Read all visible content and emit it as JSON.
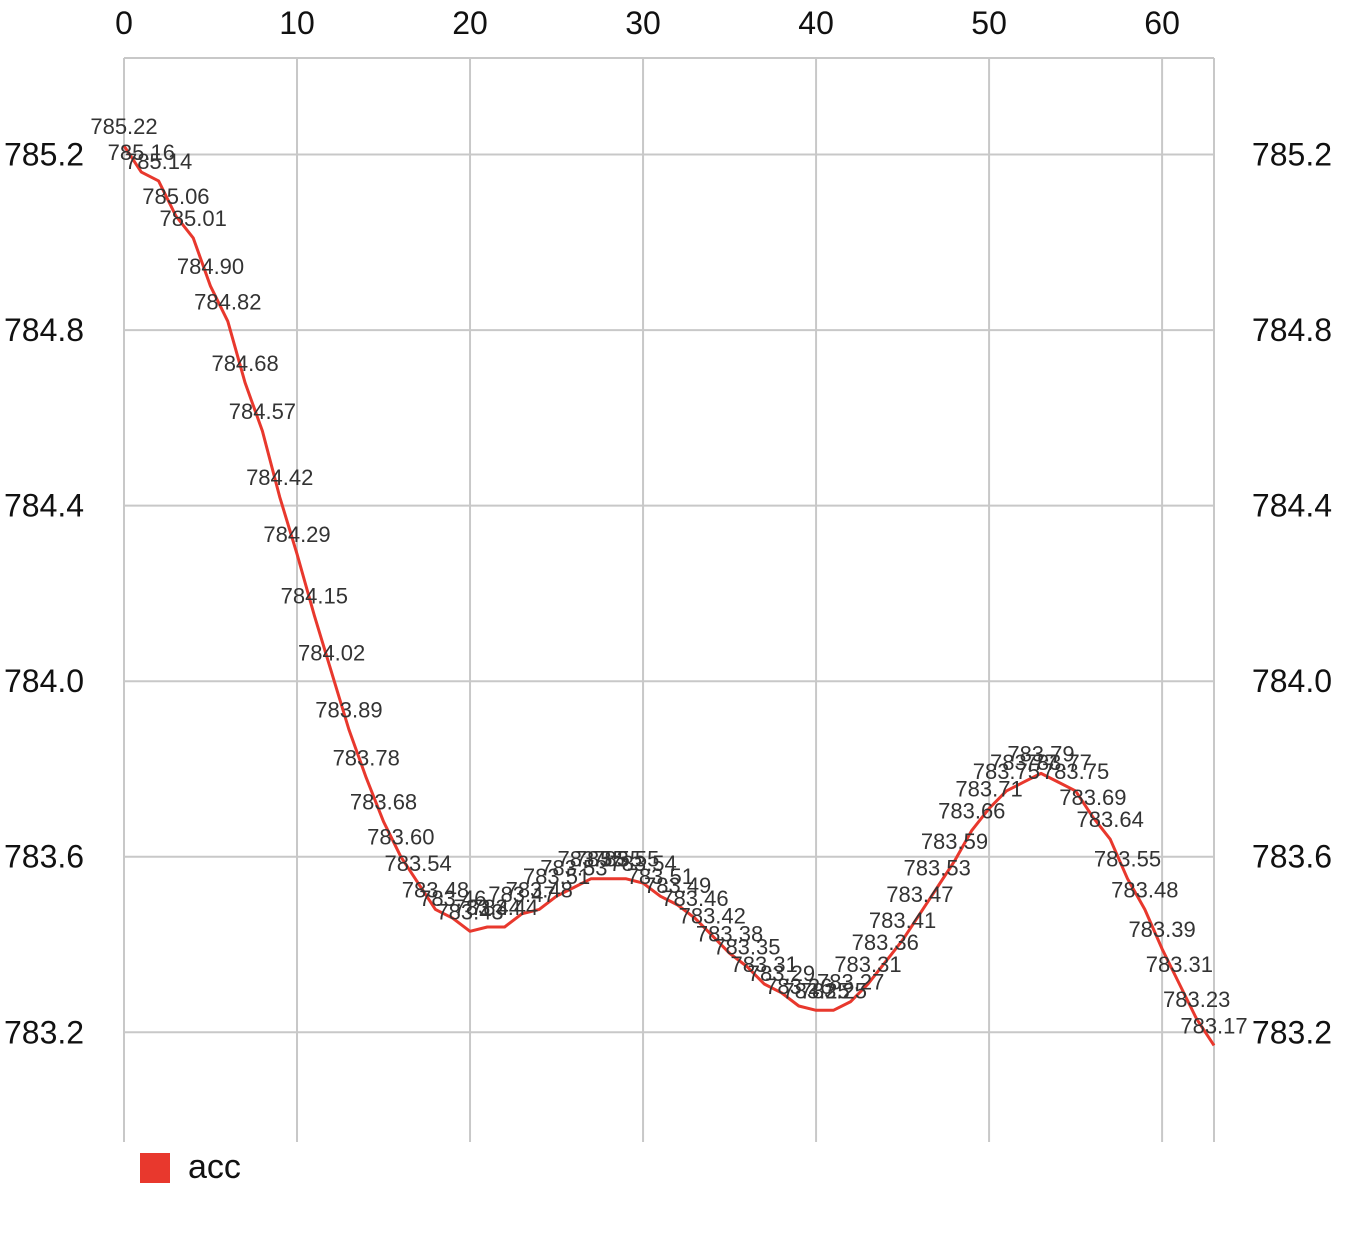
{
  "chart_data": {
    "type": "line",
    "xlim": [
      0,
      63
    ],
    "ylim": [
      782.95,
      785.42
    ],
    "x_ticks": [
      0,
      10,
      20,
      30,
      40,
      50,
      60
    ],
    "y_ticks": [
      783.2,
      783.6,
      784.0,
      784.4,
      784.8,
      785.2
    ],
    "x_tick_labels": [
      "0",
      "10",
      "20",
      "30",
      "40",
      "50",
      "60"
    ],
    "y_tick_labels": [
      "783.2",
      "783.6",
      "784.0",
      "784.4",
      "784.8",
      "785.2"
    ],
    "x_axis_position": "top",
    "y_axis_position": "both",
    "grid": true,
    "legend_position": "bottom-left",
    "series": [
      {
        "name": "acc",
        "color": "#e8382d",
        "x": [
          0,
          1,
          2,
          3,
          4,
          5,
          6,
          7,
          8,
          9,
          10,
          11,
          12,
          13,
          14,
          15,
          16,
          17,
          18,
          19,
          20,
          21,
          22,
          23,
          24,
          25,
          26,
          27,
          28,
          29,
          30,
          31,
          32,
          33,
          34,
          35,
          36,
          37,
          38,
          39,
          40,
          41,
          42,
          43,
          44,
          45,
          46,
          47,
          48,
          49,
          50,
          51,
          52,
          53,
          54,
          55,
          56,
          57,
          58,
          59,
          60,
          61,
          62,
          63
        ],
        "values": [
          785.22,
          785.16,
          785.14,
          785.06,
          785.01,
          784.9,
          784.82,
          784.68,
          784.57,
          784.42,
          784.29,
          784.15,
          784.02,
          783.89,
          783.78,
          783.68,
          783.6,
          783.54,
          783.48,
          783.46,
          783.43,
          783.44,
          783.44,
          783.47,
          783.48,
          783.51,
          783.53,
          783.55,
          783.55,
          783.55,
          783.54,
          783.51,
          783.49,
          783.46,
          783.42,
          783.38,
          783.35,
          783.31,
          783.29,
          783.26,
          783.25,
          783.25,
          783.27,
          783.31,
          783.36,
          783.41,
          783.47,
          783.53,
          783.59,
          783.66,
          783.71,
          783.75,
          783.77,
          783.79,
          783.77,
          783.75,
          783.69,
          783.64,
          783.55,
          783.48,
          783.39,
          783.31,
          783.23,
          783.17
        ],
        "data_labels": [
          "785.22",
          "785.16",
          "785.14",
          "785.06",
          "785.01",
          "784.90",
          "784.82",
          "784.68",
          "784.57",
          "784.42",
          "784.29",
          "784.15",
          "784.02",
          "783.89",
          "783.78",
          "783.68",
          "783.60",
          "783.54",
          "783.48",
          "783.46",
          "783.43",
          "783.44",
          "783.44",
          "783.47",
          "783.48",
          "783.51",
          "783.53",
          "783.55",
          "783.55",
          "783.55",
          "783.54",
          "783.51",
          "783.49",
          "783.46",
          "783.42",
          "783.38",
          "783.35",
          "783.31",
          "783.29",
          "783.26",
          "783.25",
          "783.25",
          "783.27",
          "783.31",
          "783.36",
          "783.41",
          "783.47",
          "783.53",
          "783.59",
          "783.66",
          "783.71",
          "783.75",
          "783.77",
          "783.79",
          "783.77",
          "783.75",
          "783.69",
          "783.64",
          "783.55",
          "783.48",
          "783.39",
          "783.31",
          "783.23",
          "783.17"
        ]
      }
    ]
  },
  "legend": {
    "label": "acc",
    "color": "#e8382d"
  }
}
